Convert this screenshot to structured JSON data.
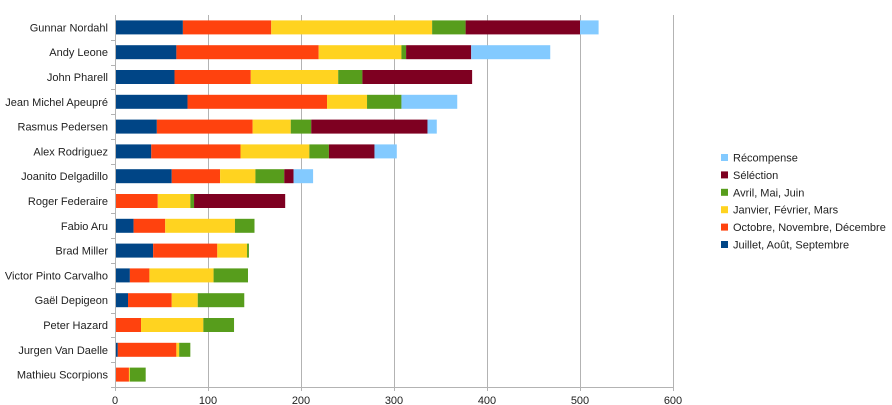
{
  "chart_data": {
    "type": "bar",
    "orientation": "horizontal",
    "stacked": true,
    "title": "",
    "xlabel": "",
    "ylabel": "",
    "xlim": [
      0,
      600
    ],
    "xticks": [
      0,
      100,
      200,
      300,
      400,
      500,
      600
    ],
    "grid": "vertical",
    "legend_position": "right",
    "categories": [
      "Gunnar Nordahl",
      "Andy Leone",
      "John Pharell",
      "Jean Michel Apeupré",
      "Rasmus Pedersen",
      "Alex Rodriguez",
      "Joanito Delgadillo",
      "Roger Federaire",
      "Fabio Aru",
      "Brad Miller",
      "Victor Pinto Carvalho",
      "Gaël Depigeon",
      "Peter Hazard",
      "Jurgen Van Daelle",
      "Mathieu Scorpions"
    ],
    "series": [
      {
        "name": "Juillet, Août, Septembre",
        "color": "#004586",
        "values": [
          73,
          66,
          64,
          78,
          45,
          39,
          61,
          0,
          20,
          41,
          16,
          14,
          0,
          3,
          0
        ]
      },
      {
        "name": "Octobre, Novembre, Décembre",
        "color": "#ff420e",
        "values": [
          95,
          153,
          82,
          150,
          103,
          96,
          52,
          46,
          34,
          69,
          21,
          47,
          28,
          63,
          15
        ]
      },
      {
        "name": "Janvier, Février, Mars",
        "color": "#ffd320",
        "values": [
          173,
          89,
          94,
          43,
          41,
          74,
          38,
          35,
          75,
          32,
          69,
          28,
          67,
          3,
          1
        ]
      },
      {
        "name": "Avril, Mai, Juin",
        "color": "#579d1c",
        "values": [
          36,
          5,
          26,
          37,
          22,
          21,
          31,
          4,
          21,
          2,
          37,
          50,
          33,
          12,
          17
        ]
      },
      {
        "name": "Séléction",
        "color": "#7e0021",
        "values": [
          123,
          70,
          118,
          0,
          125,
          49,
          10,
          98,
          0,
          0,
          0,
          0,
          0,
          0,
          0
        ]
      },
      {
        "name": "Récompense",
        "color": "#83caff",
        "values": [
          20,
          85,
          0,
          60,
          10,
          24,
          21,
          0,
          0,
          0,
          0,
          0,
          0,
          0,
          0
        ]
      }
    ]
  }
}
